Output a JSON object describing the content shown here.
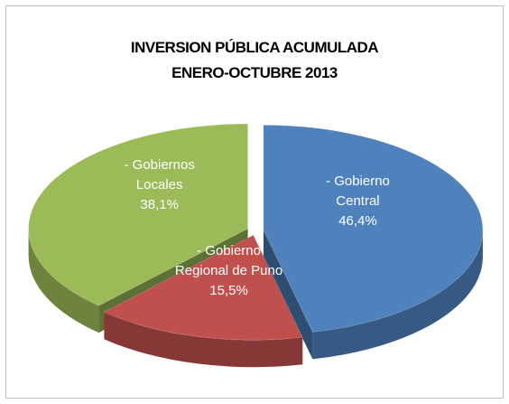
{
  "chart_data": {
    "type": "pie3d",
    "title": [
      "INVERSION PÚBLICA ACUMULADA",
      "ENERO-OCTUBRE 2013"
    ],
    "categories": [
      "- Gobierno Central",
      "- Gobierno Regional de Puno",
      "- Gobiernos Locales"
    ],
    "values": [
      46.4,
      15.5,
      38.1
    ],
    "value_labels": [
      "46,4%",
      "15,5%",
      "38,1%"
    ],
    "colors": [
      "#4f81bd",
      "#c0504d",
      "#9bbb59"
    ]
  }
}
